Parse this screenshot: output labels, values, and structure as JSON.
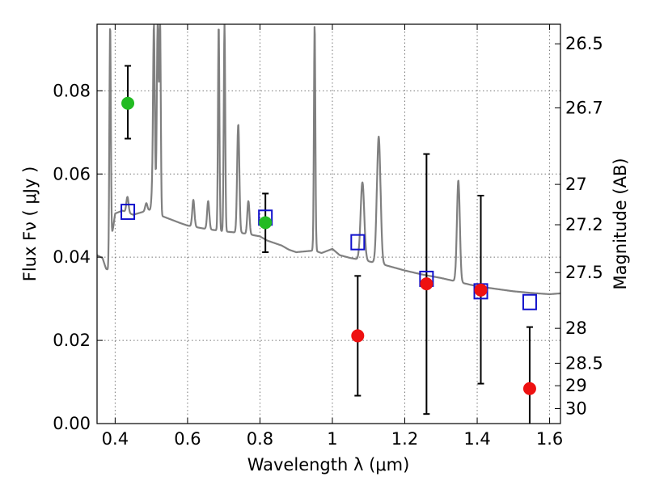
{
  "chart_data": {
    "type": "scatter",
    "xlabel": "Wavelength  λ (μm)",
    "ylabel": "Flux  Fν  ( μJy )",
    "ylabel_right": "Magnitude (AB)",
    "xlim": [
      0.35,
      1.63
    ],
    "ylim": [
      0.0,
      0.096
    ],
    "x_ticks": [
      0.4,
      0.6,
      0.8,
      1.0,
      1.2,
      1.4,
      1.6
    ],
    "x_tick_labels": [
      "0.4",
      "0.6",
      "0.8",
      "1",
      "1.2",
      "1.4",
      "1.6"
    ],
    "y_ticks": [
      0.0,
      0.02,
      0.04,
      0.06,
      0.08
    ],
    "y_tick_labels": [
      "0.00",
      "0.02",
      "0.04",
      "0.06",
      "0.08"
    ],
    "right_ticks": [
      {
        "flux": 0.0913,
        "label": "26.5"
      },
      {
        "flux": 0.0759,
        "label": "26.7"
      },
      {
        "flux": 0.0575,
        "label": "27"
      },
      {
        "flux": 0.0478,
        "label": "27.2"
      },
      {
        "flux": 0.0363,
        "label": "27.5"
      },
      {
        "flux": 0.0229,
        "label": "28"
      },
      {
        "flux": 0.0145,
        "label": "28.5"
      },
      {
        "flux": 0.0091,
        "label": "29"
      },
      {
        "flux": 0.0036,
        "label": "30"
      }
    ],
    "grid": true,
    "series": [
      {
        "kind": "points_with_errors",
        "color": "#22bb22",
        "points": [
          {
            "x": 0.435,
            "y": 0.077,
            "yerr_lo": 0.0685,
            "yerr_hi": 0.086
          },
          {
            "x": 0.815,
            "y": 0.0483,
            "yerr_lo": 0.0412,
            "yerr_hi": 0.0553
          }
        ]
      },
      {
        "kind": "points_with_errors",
        "color": "#ee1111",
        "points": [
          {
            "x": 1.07,
            "y": 0.0211,
            "yerr_lo": 0.0067,
            "yerr_hi": 0.0355
          },
          {
            "x": 1.26,
            "y": 0.0336,
            "yerr_lo": 0.0023,
            "yerr_hi": 0.0648
          },
          {
            "x": 1.41,
            "y": 0.0321,
            "yerr_lo": 0.0096,
            "yerr_hi": 0.0548
          },
          {
            "x": 1.545,
            "y": 0.0084,
            "yerr_lo": 0.0,
            "yerr_hi": 0.0232
          }
        ]
      },
      {
        "kind": "open_squares",
        "color": "#1111cc",
        "points": [
          {
            "x": 0.435,
            "y": 0.0509
          },
          {
            "x": 0.815,
            "y": 0.0495
          },
          {
            "x": 1.07,
            "y": 0.0436
          },
          {
            "x": 1.26,
            "y": 0.0348
          },
          {
            "x": 1.41,
            "y": 0.0318
          },
          {
            "x": 1.545,
            "y": 0.0292
          }
        ]
      },
      {
        "kind": "spectrum_line",
        "color": "#808080",
        "continuum": [
          [
            0.35,
            0.0405
          ],
          [
            0.365,
            0.0398
          ],
          [
            0.375,
            0.0372
          ],
          [
            0.383,
            0.0368
          ],
          [
            0.39,
            0.0445
          ],
          [
            0.4,
            0.0505
          ],
          [
            0.42,
            0.0512
          ],
          [
            0.45,
            0.0502
          ],
          [
            0.5,
            0.0515
          ],
          [
            0.52,
            0.0502
          ],
          [
            0.55,
            0.0492
          ],
          [
            0.58,
            0.0482
          ],
          [
            0.6,
            0.0476
          ],
          [
            0.65,
            0.0468
          ],
          [
            0.7,
            0.0462
          ],
          [
            0.75,
            0.0458
          ],
          [
            0.8,
            0.045
          ],
          [
            0.82,
            0.044
          ],
          [
            0.84,
            0.0434
          ],
          [
            0.86,
            0.0428
          ],
          [
            0.88,
            0.0418
          ],
          [
            0.9,
            0.0412
          ],
          [
            0.95,
            0.0416
          ],
          [
            0.97,
            0.041
          ],
          [
            1.0,
            0.042
          ],
          [
            1.02,
            0.0405
          ],
          [
            1.05,
            0.0398
          ],
          [
            1.1,
            0.039
          ],
          [
            1.15,
            0.038
          ],
          [
            1.2,
            0.0368
          ],
          [
            1.25,
            0.0358
          ],
          [
            1.3,
            0.035
          ],
          [
            1.35,
            0.034
          ],
          [
            1.4,
            0.033
          ],
          [
            1.45,
            0.0324
          ],
          [
            1.5,
            0.0318
          ],
          [
            1.55,
            0.0314
          ],
          [
            1.6,
            0.0311
          ],
          [
            1.63,
            0.0313
          ]
        ],
        "lines": [
          {
            "x": 0.386,
            "peak": 0.096,
            "w": 0.002
          },
          {
            "x": 0.434,
            "peak": 0.0545,
            "w": 0.003
          },
          {
            "x": 0.486,
            "peak": 0.053,
            "w": 0.003
          },
          {
            "x": 0.501,
            "peak": 0.0535,
            "w": 0.002
          },
          {
            "x": 0.507,
            "peak": 0.096,
            "w": 0.0025
          },
          {
            "x": 0.5175,
            "peak": 0.096,
            "w": 0.0025
          },
          {
            "x": 0.524,
            "peak": 0.096,
            "w": 0.002
          },
          {
            "x": 0.616,
            "peak": 0.0538,
            "w": 0.003
          },
          {
            "x": 0.657,
            "peak": 0.0535,
            "w": 0.003
          },
          {
            "x": 0.686,
            "peak": 0.096,
            "w": 0.002
          },
          {
            "x": 0.702,
            "peak": 0.096,
            "w": 0.002
          },
          {
            "x": 0.74,
            "peak": 0.072,
            "w": 0.003
          },
          {
            "x": 0.768,
            "peak": 0.0535,
            "w": 0.003
          },
          {
            "x": 0.951,
            "peak": 0.096,
            "w": 0.002
          },
          {
            "x": 1.083,
            "peak": 0.058,
            "w": 0.005
          },
          {
            "x": 1.128,
            "peak": 0.069,
            "w": 0.005
          },
          {
            "x": 1.348,
            "peak": 0.0585,
            "w": 0.004
          }
        ]
      }
    ]
  }
}
